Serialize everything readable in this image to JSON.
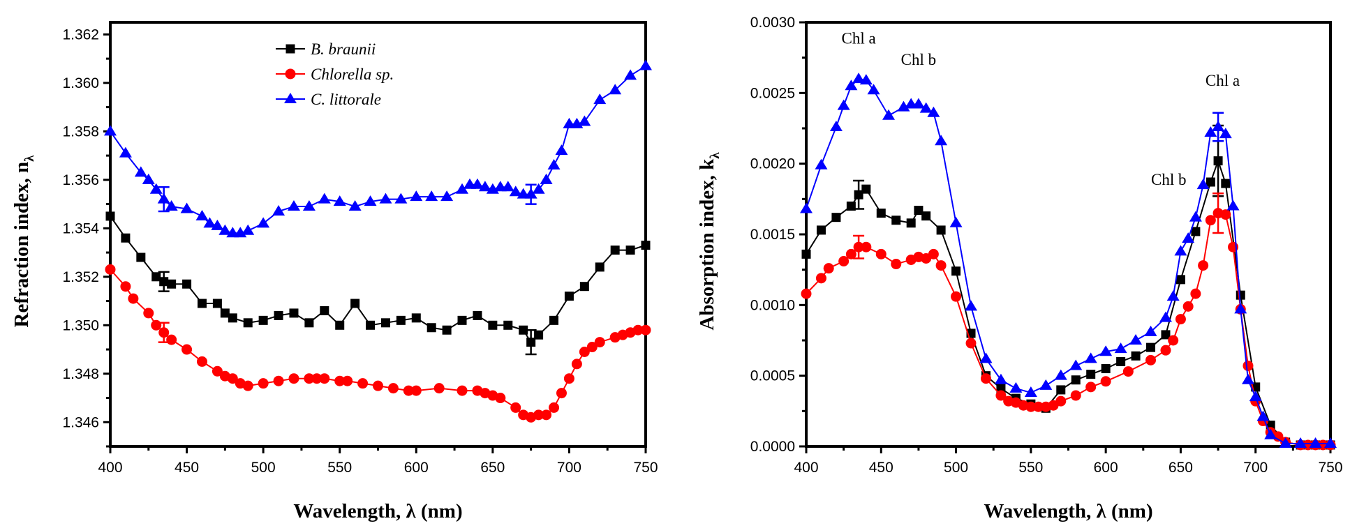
{
  "chart_data": [
    {
      "type": "line",
      "xlabel": "Wavelength, λ (nm)",
      "ylabel": "Refraction index, n",
      "ylabel_subscript": "λ",
      "xlim": [
        400,
        750
      ],
      "ylim": [
        1.345,
        1.3625
      ],
      "xticks": [
        "400",
        "450",
        "500",
        "550",
        "600",
        "650",
        "700",
        "750"
      ],
      "yticks": [
        "1.346",
        "1.348",
        "1.350",
        "1.352",
        "1.354",
        "1.356",
        "1.358",
        "1.360",
        "1.362"
      ],
      "grid": false,
      "legend": {
        "position": "top-center",
        "entries": [
          "B. braunii",
          "Chlorella sp.",
          "C. littorale"
        ]
      },
      "series": [
        {
          "name": "B. braunii",
          "color": "#000000",
          "marker": "square",
          "x": [
            400,
            410,
            420,
            430,
            435,
            440,
            450,
            460,
            470,
            475,
            480,
            490,
            500,
            510,
            520,
            530,
            540,
            550,
            560,
            570,
            580,
            590,
            600,
            610,
            620,
            630,
            640,
            650,
            660,
            670,
            675,
            680,
            690,
            700,
            710,
            720,
            730,
            740,
            750
          ],
          "y": [
            1.3545,
            1.3536,
            1.3528,
            1.352,
            1.3518,
            1.3517,
            1.3517,
            1.3509,
            1.3509,
            1.3505,
            1.3503,
            1.3501,
            1.3502,
            1.3504,
            1.3505,
            1.3501,
            1.3506,
            1.35,
            1.3509,
            1.35,
            1.3501,
            1.3502,
            1.3503,
            1.3499,
            1.3498,
            1.3502,
            1.3504,
            1.35,
            1.35,
            1.3498,
            1.3493,
            1.3496,
            1.3502,
            1.3512,
            1.3516,
            1.3524,
            1.3531,
            1.3531,
            1.3533
          ],
          "error_bars": [
            {
              "x": 435,
              "err": 0.0004
            },
            {
              "x": 675,
              "err": 0.0005
            }
          ]
        },
        {
          "name": "Chlorella sp.",
          "color": "#ff0000",
          "marker": "circle",
          "x": [
            400,
            410,
            415,
            425,
            430,
            435,
            440,
            450,
            460,
            470,
            475,
            480,
            485,
            490,
            500,
            510,
            520,
            530,
            535,
            540,
            550,
            555,
            565,
            575,
            585,
            595,
            600,
            615,
            630,
            640,
            645,
            650,
            655,
            665,
            670,
            675,
            680,
            685,
            690,
            695,
            700,
            705,
            710,
            715,
            720,
            730,
            735,
            740,
            745,
            750
          ],
          "y": [
            1.3523,
            1.3516,
            1.3511,
            1.3505,
            1.35,
            1.3497,
            1.3494,
            1.349,
            1.3485,
            1.3481,
            1.3479,
            1.3478,
            1.3476,
            1.3475,
            1.3476,
            1.3477,
            1.3478,
            1.3478,
            1.3478,
            1.3478,
            1.3477,
            1.3477,
            1.3476,
            1.3475,
            1.3474,
            1.3473,
            1.3473,
            1.3474,
            1.3473,
            1.3473,
            1.3472,
            1.3471,
            1.347,
            1.3466,
            1.3463,
            1.3462,
            1.3463,
            1.3463,
            1.3466,
            1.3472,
            1.3478,
            1.3484,
            1.3489,
            1.3491,
            1.3493,
            1.3495,
            1.3496,
            1.3497,
            1.3498,
            1.3498
          ],
          "error_bars": [
            {
              "x": 435,
              "err": 0.0004
            }
          ]
        },
        {
          "name": "C. littorale",
          "color": "#0000ff",
          "marker": "triangle",
          "x": [
            400,
            410,
            420,
            425,
            430,
            435,
            440,
            450,
            460,
            465,
            470,
            475,
            480,
            485,
            490,
            500,
            510,
            520,
            530,
            540,
            550,
            560,
            570,
            580,
            590,
            600,
            610,
            620,
            630,
            635,
            640,
            645,
            650,
            655,
            660,
            665,
            670,
            675,
            680,
            685,
            690,
            695,
            700,
            705,
            710,
            720,
            730,
            740,
            750
          ],
          "y": [
            1.358,
            1.3571,
            1.3563,
            1.356,
            1.3556,
            1.3552,
            1.3549,
            1.3548,
            1.3545,
            1.3542,
            1.3541,
            1.3539,
            1.3538,
            1.3538,
            1.3539,
            1.3542,
            1.3547,
            1.3549,
            1.3549,
            1.3552,
            1.3551,
            1.3549,
            1.3551,
            1.3552,
            1.3552,
            1.3553,
            1.3553,
            1.3553,
            1.3556,
            1.3558,
            1.3558,
            1.3557,
            1.3556,
            1.3557,
            1.3557,
            1.3555,
            1.3554,
            1.3554,
            1.3556,
            1.356,
            1.3566,
            1.3572,
            1.3583,
            1.3583,
            1.3584,
            1.3593,
            1.3597,
            1.3603,
            1.3607
          ],
          "error_bars": [
            {
              "x": 435,
              "err": 0.0005
            },
            {
              "x": 675,
              "err": 0.0004
            }
          ]
        }
      ]
    },
    {
      "type": "line",
      "xlabel": "Wavelength, λ (nm)",
      "ylabel": "Absorption index, k",
      "ylabel_subscript": "λ",
      "xlim": [
        400,
        750
      ],
      "ylim": [
        0,
        0.003
      ],
      "xticks": [
        "400",
        "450",
        "500",
        "550",
        "600",
        "650",
        "700",
        "750"
      ],
      "yticks": [
        "0.0000",
        "0.0005",
        "0.0010",
        "0.0015",
        "0.0020",
        "0.0025",
        "0.0030"
      ],
      "grid": false,
      "annotations": [
        {
          "text": "Chl a",
          "x": 435,
          "y": 0.00285
        },
        {
          "text": "Chl b",
          "x": 475,
          "y": 0.0027
        },
        {
          "text": "Chl b",
          "x": 642,
          "y": 0.00185
        },
        {
          "text": "Chl a",
          "x": 678,
          "y": 0.00255
        }
      ],
      "series": [
        {
          "name": "B. braunii",
          "color": "#000000",
          "marker": "square",
          "x": [
            400,
            410,
            420,
            430,
            435,
            440,
            450,
            460,
            470,
            475,
            480,
            490,
            500,
            510,
            520,
            530,
            540,
            550,
            560,
            570,
            580,
            590,
            600,
            610,
            620,
            630,
            640,
            650,
            660,
            670,
            675,
            680,
            690,
            700,
            710,
            720,
            730,
            740,
            750
          ],
          "y": [
            0.00136,
            0.00153,
            0.00162,
            0.0017,
            0.00178,
            0.00182,
            0.00165,
            0.0016,
            0.00158,
            0.00167,
            0.00163,
            0.00153,
            0.00124,
            0.0008,
            0.0005,
            0.00041,
            0.00034,
            0.0003,
            0.00027,
            0.0004,
            0.00047,
            0.00051,
            0.00055,
            0.0006,
            0.00064,
            0.0007,
            0.00079,
            0.00118,
            0.00152,
            0.00187,
            0.00202,
            0.00186,
            0.00107,
            0.00042,
            0.00015,
            3e-05,
            1e-05,
            1e-05,
            1e-05
          ],
          "error_bars": [
            {
              "x": 435,
              "err": 0.0001
            },
            {
              "x": 675,
              "err": 0.00025
            }
          ]
        },
        {
          "name": "Chlorella sp.",
          "color": "#ff0000",
          "marker": "circle",
          "x": [
            400,
            410,
            415,
            425,
            430,
            435,
            440,
            450,
            460,
            470,
            475,
            480,
            485,
            490,
            500,
            510,
            520,
            530,
            535,
            540,
            545,
            550,
            555,
            560,
            565,
            570,
            580,
            590,
            600,
            615,
            630,
            640,
            645,
            650,
            655,
            660,
            665,
            670,
            675,
            680,
            685,
            690,
            695,
            700,
            705,
            710,
            715,
            720,
            730,
            735,
            740,
            745,
            750
          ],
          "y": [
            0.00108,
            0.00119,
            0.00126,
            0.00131,
            0.00136,
            0.00141,
            0.00141,
            0.00136,
            0.00129,
            0.00132,
            0.00134,
            0.00133,
            0.00136,
            0.00128,
            0.00106,
            0.00073,
            0.00048,
            0.00036,
            0.00032,
            0.00031,
            0.00029,
            0.00028,
            0.00028,
            0.00028,
            0.00029,
            0.00032,
            0.00036,
            0.00042,
            0.00046,
            0.00053,
            0.00061,
            0.00068,
            0.00075,
            0.0009,
            0.00099,
            0.00108,
            0.00128,
            0.0016,
            0.00165,
            0.00164,
            0.00141,
            0.00097,
            0.00057,
            0.00032,
            0.00018,
            0.0001,
            7e-05,
            3e-05,
            1e-05,
            1e-05,
            1e-05,
            1e-05,
            1e-05
          ],
          "error_bars": [
            {
              "x": 435,
              "err": 8e-05
            },
            {
              "x": 675,
              "err": 0.00014
            }
          ]
        },
        {
          "name": "C. littorale",
          "color": "#0000ff",
          "marker": "triangle",
          "x": [
            400,
            410,
            420,
            425,
            430,
            435,
            440,
            445,
            455,
            465,
            470,
            475,
            480,
            485,
            490,
            500,
            510,
            520,
            530,
            540,
            550,
            560,
            570,
            580,
            590,
            600,
            610,
            620,
            630,
            640,
            645,
            650,
            655,
            660,
            665,
            670,
            675,
            680,
            685,
            690,
            695,
            700,
            705,
            710,
            720,
            730,
            740,
            750
          ],
          "y": [
            0.00168,
            0.00199,
            0.00226,
            0.00241,
            0.00255,
            0.0026,
            0.00259,
            0.00252,
            0.00234,
            0.0024,
            0.00242,
            0.00242,
            0.00239,
            0.00236,
            0.00216,
            0.00158,
            0.00099,
            0.00062,
            0.00047,
            0.00041,
            0.00038,
            0.00043,
            0.0005,
            0.00057,
            0.00062,
            0.00067,
            0.00069,
            0.00075,
            0.00081,
            0.00091,
            0.00106,
            0.00138,
            0.00147,
            0.00162,
            0.00185,
            0.00222,
            0.00226,
            0.00221,
            0.0017,
            0.00097,
            0.00047,
            0.00035,
            0.00021,
            8e-05,
            2e-05,
            2e-05,
            2e-05,
            2e-05
          ],
          "error_bars": [
            {
              "x": 675,
              "err": 0.0001
            }
          ]
        }
      ]
    }
  ]
}
